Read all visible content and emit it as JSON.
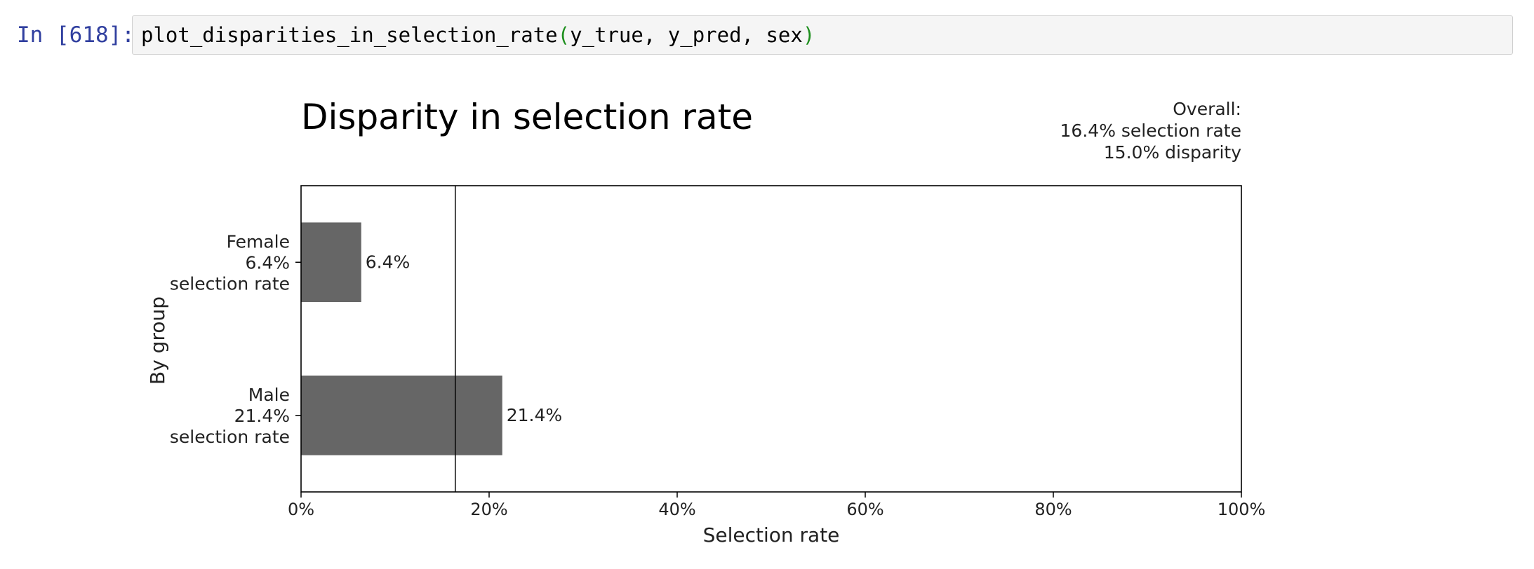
{
  "cell": {
    "prompt": "In [618]:",
    "code": {
      "func": "plot_disparities_in_selection_rate",
      "open_paren": "(",
      "args": "y_true, y_pred, sex",
      "close_paren": ")"
    }
  },
  "colors": {
    "prompt": "#303F9F",
    "paren": "#1e8f1e",
    "bar": "#666666",
    "axis": "#000000"
  },
  "chart_data": {
    "type": "bar",
    "orientation": "horizontal",
    "title": "Disparity in selection rate",
    "xlabel": "Selection rate",
    "ylabel": "By group",
    "xlim": [
      0,
      100
    ],
    "x_unit": "%",
    "x_ticks": [
      "0%",
      "20%",
      "40%",
      "60%",
      "80%",
      "100%"
    ],
    "categories": [
      {
        "name": "Female",
        "label_lines": [
          "Female",
          "6.4%",
          "selection rate"
        ]
      },
      {
        "name": "Male",
        "label_lines": [
          "Male",
          "21.4%",
          "selection rate"
        ]
      }
    ],
    "values": [
      6.4,
      21.4
    ],
    "value_labels": [
      "6.4%",
      "21.4%"
    ],
    "overall_line": 16.4,
    "summary": {
      "line1": "Overall:",
      "line2": "16.4% selection rate",
      "line3": "15.0% disparity"
    },
    "grid": false
  }
}
